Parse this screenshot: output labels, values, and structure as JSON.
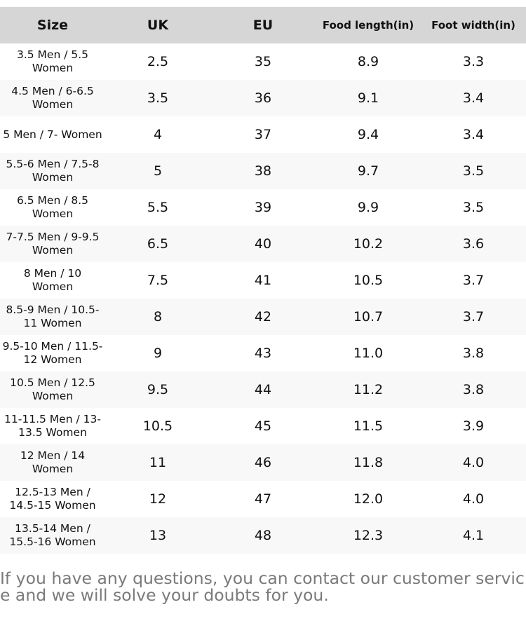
{
  "table": {
    "headers": [
      "Size",
      "UK",
      "EU",
      "Food length(in)",
      "Foot width(in)"
    ],
    "rows": [
      [
        "3.5 Men / 5.5 Women",
        "2.5",
        "35",
        "8.9",
        "3.3"
      ],
      [
        "4.5 Men / 6-6.5 Women",
        "3.5",
        "36",
        "9.1",
        "3.4"
      ],
      [
        "5 Men / 7- Women",
        "4",
        "37",
        "9.4",
        "3.4"
      ],
      [
        "5.5-6 Men / 7.5-8 Women",
        "5",
        "38",
        "9.7",
        "3.5"
      ],
      [
        "6.5 Men / 8.5 Women",
        "5.5",
        "39",
        "9.9",
        "3.5"
      ],
      [
        "7-7.5 Men / 9-9.5 Women",
        "6.5",
        "40",
        "10.2",
        "3.6"
      ],
      [
        "8 Men / 10 Women",
        "7.5",
        "41",
        "10.5",
        "3.7"
      ],
      [
        "8.5-9 Men / 10.5-11 Women",
        "8",
        "42",
        "10.7",
        "3.7"
      ],
      [
        "9.5-10 Men / 11.5-12 Women",
        "9",
        "43",
        "11.0",
        "3.8"
      ],
      [
        "10.5 Men / 12.5 Women",
        "9.5",
        "44",
        "11.2",
        "3.8"
      ],
      [
        "11-11.5 Men / 13-13.5 Women",
        "10.5",
        "45",
        "11.5",
        "3.9"
      ],
      [
        "12 Men / 14 Women",
        "11",
        "46",
        "11.8",
        "4.0"
      ],
      [
        "12.5-13 Men / 14.5-15 Women",
        "12",
        "47",
        "12.0",
        "4.0"
      ],
      [
        "13.5-14 Men / 15.5-16 Women",
        "13",
        "48",
        "12.3",
        "4.1"
      ]
    ]
  },
  "footer": {
    "note": "If you have any questions, you can contact our customer service and we will solve your doubts for you."
  },
  "colors": {
    "header_bg": "#d6d6d6",
    "stripe_bg": "#f8f8f8",
    "note_text": "#7a7a7a"
  }
}
